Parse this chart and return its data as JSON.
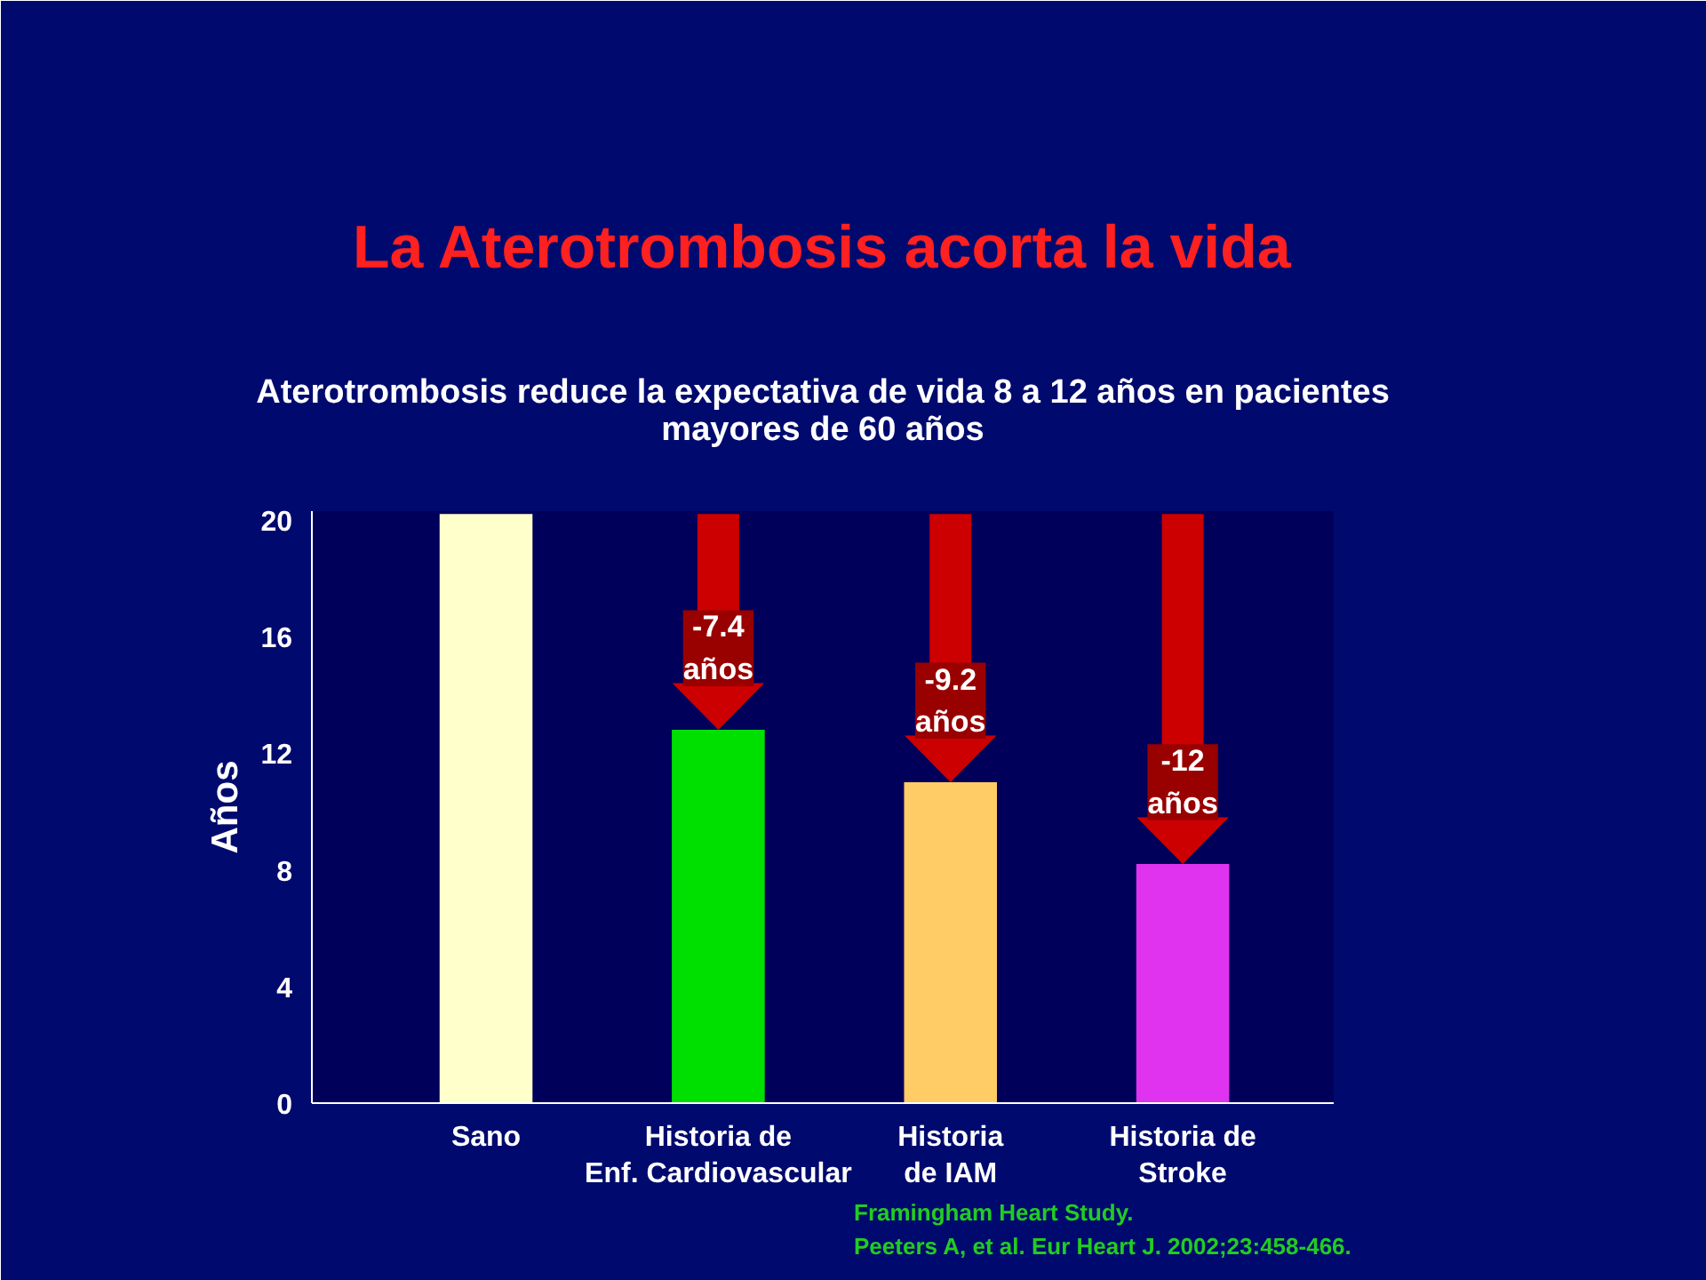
{
  "chart_data": {
    "type": "bar",
    "title": "La Aterotrombosis acorta la vida",
    "subtitle": "Aterotrombosis reduce la expectativa de vida 8 a 12 años en pacientes\nmayores de 60 años",
    "ylabel": "Años",
    "categories": [
      "Sano",
      "Historia de\nEnf. Cardiovascular",
      "Historia\nde IAM",
      "Historia de\nStroke"
    ],
    "values": [
      20.2,
      12.8,
      11.0,
      8.2
    ],
    "colors": [
      "#ffffcc",
      "#00e000",
      "#ffcc66",
      "#e033f0"
    ],
    "ylim": [
      0,
      20.3
    ],
    "yticks": [
      0,
      4,
      8,
      12,
      16,
      20
    ],
    "grid": false,
    "annotations": [
      {
        "text": "-7.4\naños",
        "x": "Historia de\nEnf. Cardiovascular",
        "y": 12.8
      },
      {
        "text": "-9.2\naños",
        "x": "Historia\nde IAM",
        "y": 11.0
      },
      {
        "text": "-12\naños",
        "x": "Historia de\nStroke",
        "y": 8.2
      },
      "Framingham Heart Study.",
      "Peeters A, et al. Eur Heart J. 2002;23:458-466."
    ]
  }
}
